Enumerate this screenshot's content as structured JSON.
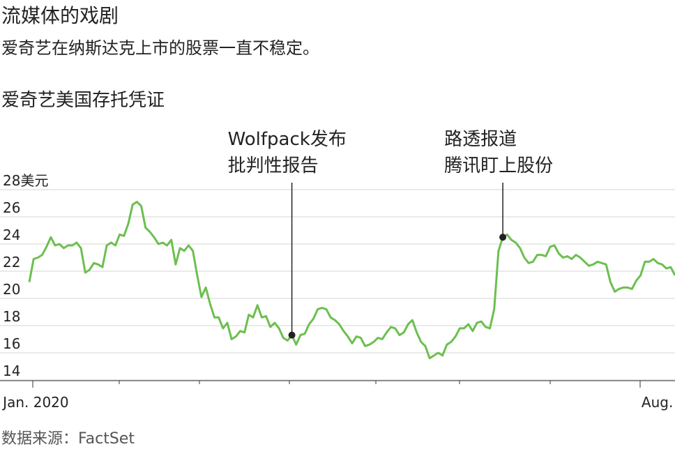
{
  "chart_data": {
    "type": "line",
    "title": "流媒体的戏剧",
    "subtitle": "爱奇艺在纳斯达克上市的股票一直不稳定。",
    "series_label": "爱奇艺美国存托凭证",
    "source": "数据来源：FactSet",
    "categories": [
      null,
      "Jan. 2020",
      null,
      null,
      null,
      null,
      null,
      null,
      null,
      null,
      null,
      null,
      null,
      null,
      null,
      null,
      null,
      null,
      null,
      null,
      null,
      null,
      null,
      null,
      null,
      null,
      null,
      null,
      null,
      null,
      null,
      null,
      null,
      null,
      null,
      null,
      null,
      null,
      null,
      null,
      null,
      null,
      null,
      null,
      null,
      null,
      null,
      null,
      null,
      null,
      null,
      null,
      null,
      null,
      null,
      null,
      null,
      null,
      null,
      null,
      null,
      null,
      null,
      null,
      null,
      null,
      null,
      null,
      null,
      null,
      null,
      null,
      null,
      null,
      null,
      null,
      null,
      null,
      null,
      null,
      null,
      null,
      null,
      null,
      null,
      null,
      null,
      null,
      null,
      null,
      null,
      null,
      null,
      null,
      null,
      null,
      null,
      null,
      null,
      null,
      null,
      null,
      null,
      null,
      null,
      null,
      null,
      null,
      null,
      null,
      null,
      null,
      null,
      null,
      null,
      null,
      null,
      null,
      null,
      null,
      null,
      null,
      null,
      null,
      null,
      null,
      null,
      null,
      null,
      null,
      null,
      null,
      null,
      null,
      null,
      null,
      null,
      null,
      null,
      null,
      null,
      null,
      "Aug.",
      null,
      null,
      null,
      null,
      null,
      null,
      null,
      null
    ],
    "values": [
      21.2,
      22.9,
      23.0,
      23.2,
      23.8,
      24.5,
      23.9,
      24.0,
      23.7,
      23.9,
      23.9,
      24.1,
      23.7,
      21.9,
      22.1,
      22.6,
      22.5,
      22.3,
      23.9,
      24.1,
      23.9,
      24.7,
      24.6,
      25.5,
      26.9,
      27.1,
      26.8,
      25.2,
      24.9,
      24.5,
      24.0,
      24.1,
      23.9,
      24.3,
      22.5,
      23.7,
      23.5,
      23.9,
      23.5,
      21.7,
      20.1,
      20.8,
      19.6,
      18.6,
      18.6,
      17.8,
      18.2,
      17.0,
      17.2,
      17.6,
      17.5,
      18.8,
      18.6,
      19.5,
      18.6,
      18.7,
      17.9,
      18.2,
      17.8,
      17.1,
      16.9,
      17.3,
      16.6,
      17.3,
      17.4,
      18.1,
      18.5,
      19.2,
      19.3,
      19.2,
      18.6,
      18.4,
      18.1,
      17.6,
      17.2,
      16.7,
      17.2,
      17.1,
      16.5,
      16.6,
      16.8,
      17.1,
      17.0,
      17.5,
      17.9,
      17.8,
      17.3,
      17.5,
      18.1,
      18.4,
      17.5,
      16.8,
      16.5,
      15.6,
      15.8,
      16.0,
      15.8,
      16.6,
      16.8,
      17.2,
      17.8,
      17.8,
      18.1,
      17.6,
      18.2,
      18.3,
      17.9,
      17.8,
      19.2,
      23.5,
      24.5,
      24.7,
      24.3,
      24.1,
      23.7,
      23.0,
      22.6,
      22.7,
      23.2,
      23.2,
      23.1,
      23.8,
      23.9,
      23.3,
      23.0,
      23.1,
      22.9,
      23.2,
      23.0,
      22.7,
      22.4,
      22.5,
      22.7,
      22.6,
      22.5,
      21.2,
      20.5,
      20.7,
      20.8,
      20.8,
      20.7,
      21.3,
      21.7,
      22.7,
      22.7,
      22.9,
      22.6,
      22.5,
      22.2,
      22.3,
      21.7
    ],
    "color": "#6cbf4f",
    "ylim": [
      14,
      28
    ],
    "yticks": [
      14,
      16,
      18,
      20,
      22,
      24,
      26,
      {
        "value": 28,
        "label": "28美元"
      }
    ],
    "grid": true,
    "annotations": [
      {
        "text": [
          "Wolfpack发布",
          "批判性报告"
        ],
        "index": 61
      },
      {
        "text": [
          "路透报道",
          "腾讯盯上股份"
        ],
        "index": 110
      }
    ]
  }
}
